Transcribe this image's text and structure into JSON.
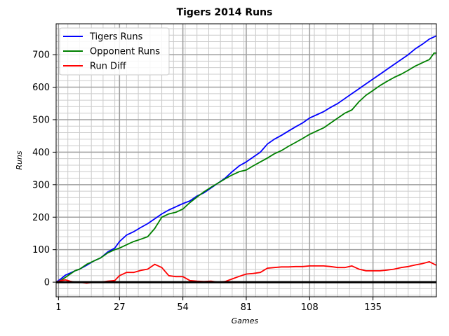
{
  "chart_data": {
    "type": "line",
    "title": "Tigers 2014 Runs",
    "xlabel": "Games",
    "ylabel": "Runs",
    "xlim": [
      0,
      162
    ],
    "ylim": [
      -45,
      795
    ],
    "xticks": [
      1,
      27,
      54,
      81,
      108,
      135
    ],
    "yticks": [
      0,
      100,
      200,
      300,
      400,
      500,
      600,
      700
    ],
    "grid": "major and minor",
    "legend_location": "upper-left",
    "zero_line": 0,
    "series": [
      {
        "name": "Tigers Runs",
        "color": "#0000ff",
        "x": [
          0,
          2,
          4,
          6,
          8,
          10,
          13,
          16,
          19,
          22,
          25,
          27,
          30,
          33,
          36,
          39,
          42,
          45,
          48,
          51,
          54,
          57,
          60,
          63,
          66,
          69,
          72,
          75,
          78,
          81,
          84,
          87,
          90,
          93,
          96,
          99,
          102,
          105,
          108,
          111,
          114,
          117,
          120,
          123,
          126,
          129,
          132,
          135,
          138,
          141,
          144,
          147,
          150,
          153,
          156,
          159,
          162
        ],
        "y": [
          0,
          10,
          22,
          28,
          35,
          40,
          52,
          65,
          75,
          93,
          105,
          125,
          145,
          155,
          168,
          180,
          195,
          210,
          222,
          232,
          242,
          250,
          265,
          275,
          290,
          305,
          320,
          340,
          358,
          370,
          385,
          400,
          425,
          440,
          452,
          465,
          478,
          490,
          505,
          515,
          525,
          538,
          550,
          565,
          580,
          595,
          610,
          625,
          640,
          655,
          670,
          685,
          700,
          718,
          732,
          748,
          758
        ]
      },
      {
        "name": "Opponent Runs",
        "color": "#008000",
        "x": [
          0,
          2,
          4,
          6,
          8,
          10,
          13,
          16,
          19,
          22,
          25,
          27,
          30,
          33,
          36,
          39,
          42,
          45,
          48,
          51,
          54,
          57,
          60,
          63,
          66,
          69,
          72,
          75,
          78,
          81,
          84,
          87,
          90,
          93,
          96,
          99,
          102,
          105,
          108,
          111,
          114,
          117,
          120,
          123,
          126,
          129,
          132,
          135,
          138,
          141,
          144,
          147,
          150,
          153,
          156,
          159,
          161,
          162
        ],
        "y": [
          0,
          5,
          15,
          25,
          35,
          40,
          55,
          65,
          75,
          90,
          100,
          105,
          115,
          125,
          132,
          140,
          165,
          200,
          210,
          215,
          225,
          245,
          262,
          278,
          292,
          305,
          318,
          330,
          340,
          345,
          358,
          370,
          382,
          395,
          405,
          418,
          430,
          442,
          455,
          465,
          475,
          490,
          505,
          520,
          530,
          555,
          575,
          590,
          605,
          618,
          630,
          640,
          652,
          665,
          675,
          685,
          705,
          705
        ]
      },
      {
        "name": "Run Diff",
        "color": "#ff0000",
        "x": [
          0,
          2,
          4,
          6,
          8,
          10,
          13,
          16,
          19,
          22,
          25,
          27,
          30,
          33,
          36,
          39,
          42,
          45,
          48,
          51,
          54,
          57,
          60,
          63,
          66,
          69,
          72,
          75,
          78,
          81,
          84,
          87,
          90,
          93,
          96,
          99,
          102,
          105,
          108,
          111,
          114,
          117,
          120,
          123,
          126,
          129,
          132,
          135,
          138,
          141,
          144,
          147,
          150,
          153,
          156,
          159,
          162
        ],
        "y": [
          0,
          5,
          7,
          3,
          0,
          0,
          -3,
          0,
          0,
          3,
          5,
          20,
          30,
          30,
          36,
          40,
          55,
          45,
          20,
          17,
          17,
          5,
          3,
          2,
          3,
          0,
          2,
          10,
          18,
          25,
          27,
          30,
          43,
          45,
          47,
          47,
          48,
          48,
          50,
          50,
          50,
          48,
          45,
          45,
          50,
          40,
          35,
          35,
          35,
          37,
          40,
          45,
          48,
          53,
          57,
          63,
          52
        ]
      }
    ]
  }
}
